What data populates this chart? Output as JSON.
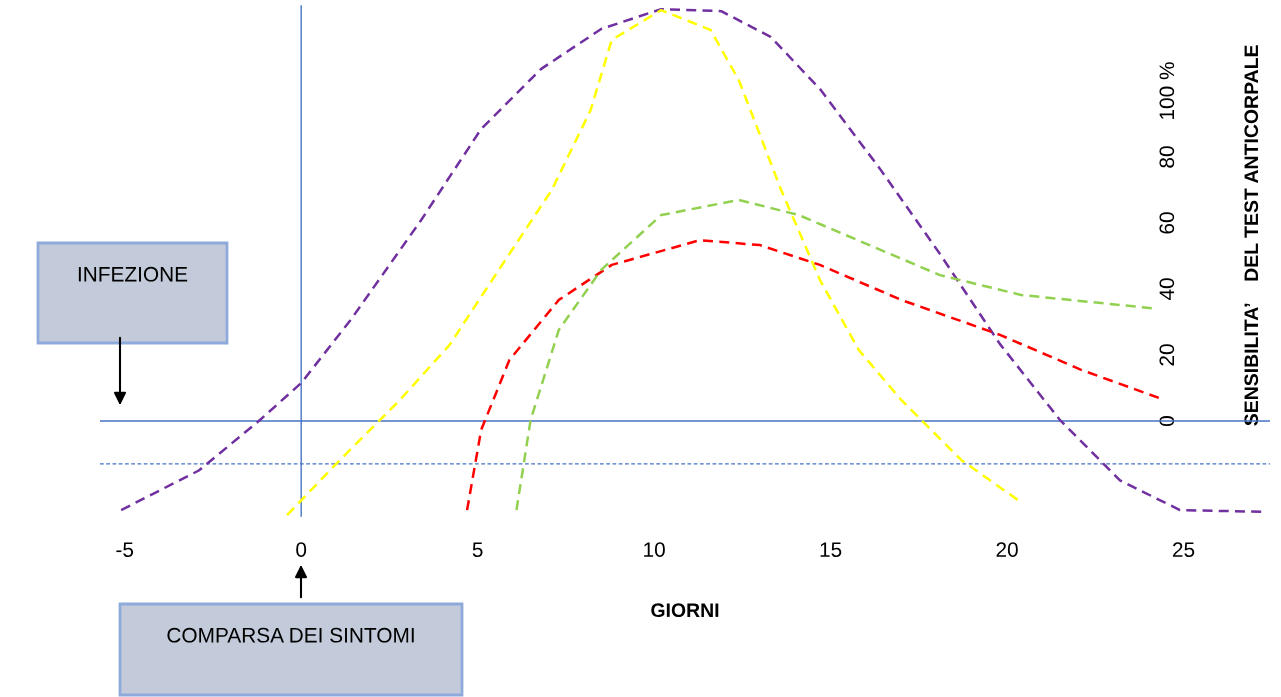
{
  "chart_data": {
    "type": "line",
    "xlabel": "GIORNI",
    "ylabel": "SENSIBILITA’    DEL TEST ANTICORPALE",
    "annotations": [
      "INFEZIONE",
      "COMPARSA DEI SINTOMI"
    ],
    "xlim": [
      -5.7,
      27.45
    ],
    "ylim": [
      -29,
      126
    ],
    "xticks": [
      -5,
      0,
      5,
      10,
      15,
      20,
      25
    ],
    "yticks": [
      0,
      20,
      40,
      60,
      80,
      {
        "value": 100,
        "label": "100 %"
      }
    ],
    "grid": false,
    "marker": "none",
    "line_style": "dashed",
    "ref_lines": [
      {
        "axis": "y",
        "value": 0,
        "color": "#4472c4",
        "line_style": "solid"
      },
      {
        "axis": "x",
        "value": 0,
        "color": "#4472c4",
        "line_style": "solid"
      },
      {
        "axis": "y",
        "value": -13,
        "color": "#4472c4",
        "line_style": "dashed"
      }
    ],
    "series": [
      {
        "color": "#7030a0",
        "x": [
          -5.1,
          -2.9,
          -1.2,
          0.0,
          1.4,
          3.4,
          5.1,
          6.8,
          8.5,
          10.2,
          11.9,
          13.3,
          14.7,
          16.4,
          18.1,
          19.8,
          21.5,
          23.2,
          24.9,
          27.2
        ],
        "values": [
          -27,
          -15,
          0,
          11.5,
          30.6,
          60.9,
          88.5,
          106.7,
          118.8,
          124.8,
          124.2,
          116.4,
          100.6,
          76.4,
          50.6,
          23.3,
          0.3,
          -18,
          -27,
          -27.5
        ]
      },
      {
        "color": "#ffff00",
        "x": [
          -0.4,
          1.1,
          2.8,
          4.2,
          5.6,
          7.1,
          8.2,
          8.8,
          10.2,
          11.6,
          12.4,
          13.6,
          14.7,
          15.8,
          17.0,
          18.7,
          20.3
        ],
        "values": [
          -28.5,
          -11.8,
          6.4,
          23,
          45.8,
          70,
          94.2,
          115.5,
          124.5,
          118.5,
          103.3,
          70,
          42.7,
          21.5,
          6.4,
          -11.8,
          -23.9
        ]
      },
      {
        "color": "#ff0000",
        "x": [
          4.7,
          5.1,
          5.9,
          7.3,
          8.8,
          11.3,
          13.0,
          14.7,
          17.0,
          19.8,
          22.1,
          24.3
        ],
        "values": [
          -27,
          -2.7,
          18.5,
          36.7,
          47.3,
          54.8,
          53.3,
          47.3,
          36.7,
          26.1,
          15.5,
          7.0
        ]
      },
      {
        "color": "#92d050",
        "x": [
          6.1,
          6.5,
          7.3,
          8.5,
          10.2,
          12.4,
          14.1,
          16.1,
          18.1,
          20.4,
          24.1
        ],
        "values": [
          -27,
          0.3,
          27.6,
          45.8,
          62.4,
          67,
          62.4,
          53.3,
          44.2,
          38.2,
          34.2
        ]
      }
    ]
  }
}
